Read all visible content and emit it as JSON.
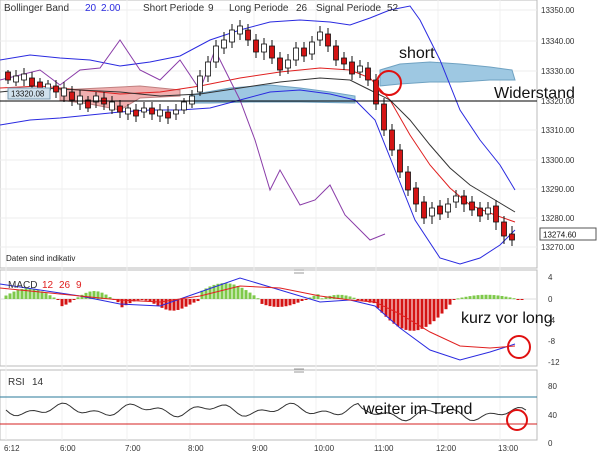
{
  "main_panel": {
    "bollinger": {
      "label": "Bollinger Band",
      "p1": "20",
      "p2": "2.00"
    },
    "short_label": "Short Periode",
    "short_val": "9",
    "long_label": "Long Periode",
    "long_val": "26",
    "signal_label": "Signal Periode",
    "signal_val": "52",
    "y_ticks": [
      "13350.00",
      "13340.00",
      "13330.00",
      "13320.00",
      "13310.00",
      "13300.00",
      "13290.00",
      "13280.00",
      "13270.00"
    ],
    "current_price": "13274.60",
    "left_price": "13320.08",
    "disclaimer": "Daten sind indikativ",
    "annotation_short": "short",
    "annotation_widerstand": "Widerstand"
  },
  "macd_panel": {
    "label": "MACD",
    "p1": "12",
    "p2": "26",
    "p3": "9",
    "y_ticks": [
      "4",
      "0",
      "-4",
      "-8",
      "-12"
    ],
    "annotation": "kurz vor long"
  },
  "rsi_panel": {
    "label": "RSI",
    "p": "14",
    "y_ticks": [
      "80",
      "40",
      "0"
    ],
    "annotation": "weiter im Trend"
  },
  "time_axis": [
    "6:12",
    "6:00",
    "7:00",
    "8:00",
    "9:00",
    "10:00",
    "11:00",
    "12:00",
    "13:00"
  ],
  "colors": {
    "bollinger": "#2a2ae0",
    "short_ma": "#e02020",
    "long_ma": "#333333",
    "signal": "#8a3ca8",
    "cloud_blue": "#9ec8e2",
    "cloud_red": "#f0b0b0",
    "macd_hist_pos": "#7ec94a",
    "macd_hist_neg": "#d41414",
    "rsi_line": "#333333",
    "rsi_upper": "#2a7a9a",
    "rsi_lower": "#d42020",
    "annotation_circle": "#e01010"
  }
}
